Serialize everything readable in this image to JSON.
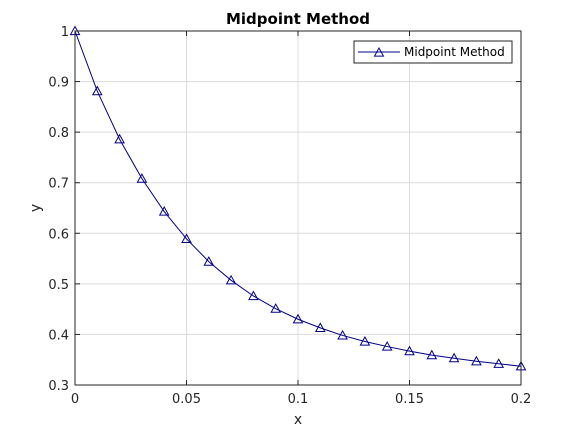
{
  "chart_data": {
    "type": "line",
    "title": "Midpoint Method",
    "xlabel": "x",
    "ylabel": "y",
    "xlim": [
      0,
      0.2
    ],
    "ylim": [
      0.3,
      1
    ],
    "xticks": [
      0,
      0.05,
      0.1,
      0.15,
      0.2
    ],
    "xtick_labels": [
      "0",
      "0.05",
      "0.1",
      "0.15",
      "0.2"
    ],
    "yticks": [
      0.3,
      0.4,
      0.5,
      0.6,
      0.7,
      0.8,
      0.9,
      1
    ],
    "ytick_labels": [
      "0.3",
      "0.4",
      "0.5",
      "0.6",
      "0.7",
      "0.8",
      "0.9",
      "1"
    ],
    "grid": true,
    "legend_position": "top-right",
    "series": [
      {
        "name": "Midpoint Method",
        "color": "#00008b",
        "marker": "triangle",
        "x": [
          0,
          0.01,
          0.02,
          0.03,
          0.04,
          0.05,
          0.06,
          0.07,
          0.08,
          0.09,
          0.1,
          0.11,
          0.12,
          0.13,
          0.14,
          0.15,
          0.16,
          0.17,
          0.18,
          0.19,
          0.2
        ],
        "y": [
          1.0,
          0.881,
          0.786,
          0.708,
          0.643,
          0.589,
          0.544,
          0.507,
          0.476,
          0.451,
          0.43,
          0.413,
          0.398,
          0.386,
          0.376,
          0.367,
          0.359,
          0.353,
          0.347,
          0.342,
          0.337
        ]
      }
    ]
  }
}
